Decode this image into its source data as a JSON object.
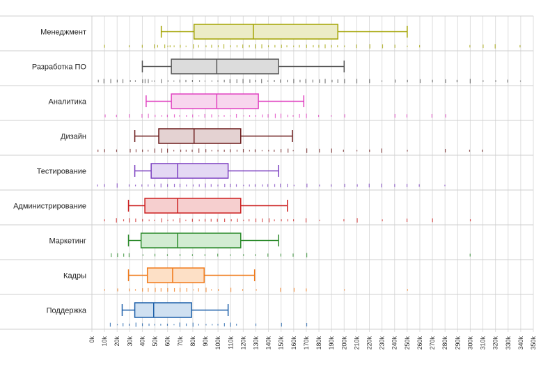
{
  "chart_data": {
    "type": "box",
    "orientation": "horizontal",
    "title": "",
    "xlabel": "",
    "ylabel": "",
    "xlim": [
      0,
      350
    ],
    "x_tick_step": 10,
    "x_tick_suffix": "k",
    "grid": "vertical",
    "legend": "none",
    "categories": [
      "Менеджмент",
      "Разработка ПО",
      "Аналитика",
      "Дизайн",
      "Тестирование",
      "Администрирование",
      "Маркетинг",
      "Кадры",
      "Поддержка"
    ],
    "colors": [
      "#a3a300",
      "#555555",
      "#e040c0",
      "#6b1a1a",
      "#7b3fc0",
      "#cc1f1f",
      "#2a8a2a",
      "#f07a1a",
      "#1a5ea8"
    ],
    "fills": [
      "#ececc6",
      "#dcdcdc",
      "#f8d6ee",
      "#e4d2d2",
      "#e4d8f4",
      "#f6cfcf",
      "#d2ecd2",
      "#fde0c6",
      "#cfe0f1"
    ],
    "boxes": [
      {
        "whisker_low": 55,
        "q1": 81,
        "median": 128,
        "q3": 195,
        "whisker_high": 250
      },
      {
        "whisker_low": 40,
        "q1": 63,
        "median": 99,
        "q3": 148,
        "whisker_high": 200
      },
      {
        "whisker_low": 43,
        "q1": 63,
        "median": 99,
        "q3": 132,
        "whisker_high": 168
      },
      {
        "whisker_low": 34,
        "q1": 53,
        "median": 81,
        "q3": 118,
        "whisker_high": 159
      },
      {
        "whisker_low": 34,
        "q1": 47,
        "median": 68,
        "q3": 108,
        "whisker_high": 148
      },
      {
        "whisker_low": 29,
        "q1": 42,
        "median": 68,
        "q3": 118,
        "whisker_high": 155
      },
      {
        "whisker_low": 29,
        "q1": 39,
        "median": 68,
        "q3": 118,
        "whisker_high": 148
      },
      {
        "whisker_low": 29,
        "q1": 44,
        "median": 64,
        "q3": 89,
        "whisker_high": 129
      },
      {
        "whisker_low": 24,
        "q1": 34,
        "median": 49,
        "q3": 79,
        "whisker_high": 108
      }
    ],
    "points": [
      [
        10,
        30,
        40,
        50,
        52,
        58,
        60,
        62,
        65,
        70,
        75,
        80,
        85,
        90,
        95,
        100,
        105,
        110,
        115,
        120,
        125,
        130,
        135,
        140,
        145,
        150,
        155,
        160,
        165,
        170,
        175,
        180,
        185,
        190,
        195,
        200,
        210,
        220,
        230,
        240,
        250,
        260,
        300,
        310,
        320,
        340
      ],
      [
        5,
        10,
        15,
        20,
        25,
        30,
        35,
        40,
        42,
        45,
        48,
        50,
        55,
        60,
        65,
        70,
        75,
        80,
        85,
        90,
        95,
        100,
        105,
        110,
        115,
        120,
        125,
        130,
        135,
        140,
        145,
        150,
        155,
        160,
        165,
        170,
        175,
        180,
        185,
        190,
        195,
        200,
        210,
        220,
        230,
        240,
        250,
        260,
        270,
        280,
        290,
        300,
        310,
        320,
        330,
        340
      ],
      [
        10,
        20,
        30,
        40,
        45,
        50,
        55,
        60,
        65,
        70,
        75,
        80,
        85,
        90,
        95,
        100,
        105,
        110,
        115,
        120,
        125,
        130,
        135,
        140,
        145,
        150,
        155,
        160,
        165,
        170,
        180,
        190,
        200,
        240,
        250,
        270,
        280
      ],
      [
        5,
        10,
        20,
        30,
        35,
        40,
        45,
        50,
        55,
        60,
        65,
        70,
        75,
        80,
        85,
        90,
        95,
        100,
        105,
        110,
        115,
        120,
        125,
        130,
        135,
        140,
        145,
        150,
        155,
        160,
        170,
        180,
        190,
        200,
        210,
        220,
        230,
        250,
        280,
        300,
        310
      ],
      [
        5,
        10,
        20,
        30,
        35,
        40,
        45,
        50,
        55,
        60,
        65,
        70,
        75,
        80,
        85,
        90,
        95,
        100,
        105,
        110,
        115,
        120,
        125,
        130,
        135,
        140,
        145,
        150,
        155,
        160,
        170,
        180,
        190,
        200,
        210,
        220,
        230,
        240,
        250,
        260,
        280
      ],
      [
        10,
        20,
        25,
        30,
        35,
        40,
        45,
        50,
        55,
        60,
        65,
        70,
        75,
        80,
        85,
        90,
        95,
        100,
        105,
        110,
        115,
        120,
        125,
        130,
        135,
        140,
        145,
        150,
        155,
        160,
        170,
        180,
        200,
        210,
        230,
        250,
        270,
        300
      ],
      [
        15,
        20,
        25,
        30,
        40,
        50,
        60,
        70,
        80,
        90,
        100,
        110,
        120,
        130,
        140,
        150,
        160,
        170,
        300
      ],
      [
        10,
        20,
        30,
        35,
        40,
        45,
        50,
        55,
        60,
        65,
        70,
        75,
        80,
        85,
        90,
        95,
        100,
        110,
        120,
        130,
        150,
        160,
        170,
        200,
        250
      ],
      [
        15,
        20,
        25,
        30,
        35,
        40,
        45,
        50,
        55,
        60,
        65,
        70,
        75,
        80,
        85,
        90,
        95,
        100,
        105,
        110,
        115,
        130,
        150,
        170
      ]
    ]
  }
}
